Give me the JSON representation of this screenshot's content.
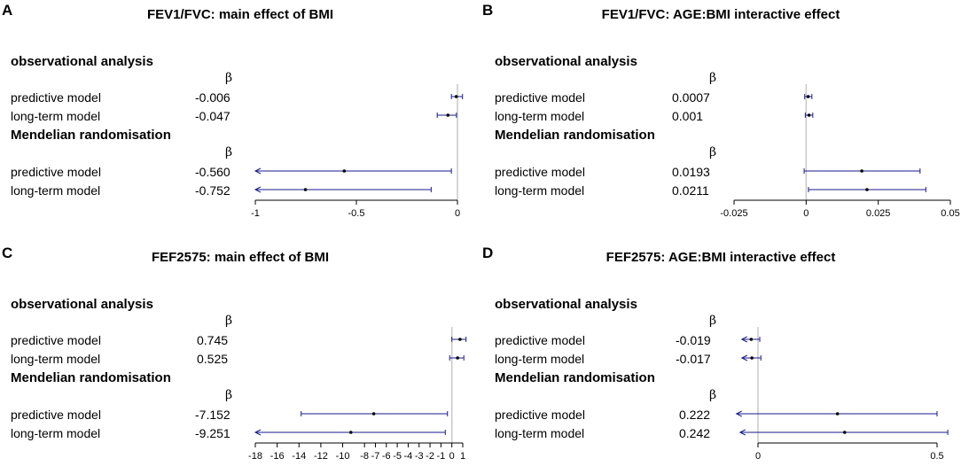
{
  "panels": [
    {
      "letter": "A",
      "title": "FEV1/FVC: main effect of BMI",
      "obs_heading": "observational analysis",
      "mr_heading": "Mendelian randomisation",
      "beta_symbol": "β",
      "rows": [
        {
          "label": "predictive model",
          "value": "-0.006"
        },
        {
          "label": "long-term model",
          "value": "-0.047"
        },
        {
          "label": "predictive model",
          "value": "-0.560"
        },
        {
          "label": "long-term model",
          "value": "-0.752"
        }
      ]
    },
    {
      "letter": "B",
      "title": "FEV1/FVC: AGE:BMI interactive effect",
      "obs_heading": "observational analysis",
      "mr_heading": "Mendelian randomisation",
      "beta_symbol": "β",
      "rows": [
        {
          "label": "predictive model",
          "value": "0.0007"
        },
        {
          "label": "long-term model",
          "value": "0.001"
        },
        {
          "label": "predictive model",
          "value": "0.0193"
        },
        {
          "label": "long-term model",
          "value": "0.0211"
        }
      ]
    },
    {
      "letter": "C",
      "title": "FEF2575: main effect of BMI",
      "obs_heading": "observational analysis",
      "mr_heading": "Mendelian randomisation",
      "beta_symbol": "β",
      "rows": [
        {
          "label": "predictive model",
          "value": "0.745"
        },
        {
          "label": "long-term model",
          "value": "0.525"
        },
        {
          "label": "predictive model",
          "value": "-7.152"
        },
        {
          "label": "long-term model",
          "value": "-9.251"
        }
      ]
    },
    {
      "letter": "D",
      "title": "FEF2575: AGE:BMI interactive effect",
      "obs_heading": "observational analysis",
      "mr_heading": "Mendelian randomisation",
      "beta_symbol": "β",
      "rows": [
        {
          "label": "predictive model",
          "value": "-0.019"
        },
        {
          "label": "long-term model",
          "value": "-0.017"
        },
        {
          "label": "predictive model",
          "value": "0.222"
        },
        {
          "label": "long-term model",
          "value": "0.242"
        }
      ]
    }
  ],
  "colors": {
    "ci_line": "#1a1a8c",
    "zero_line": "#c8c8c8",
    "point": "#000000"
  },
  "chart_data": [
    {
      "type": "forest",
      "title": "FEV1/FVC: main effect of BMI",
      "xlim": [
        -1,
        0
      ],
      "ticks": [
        -1,
        -0.5,
        0
      ],
      "tick_labels": [
        "-1",
        "-0.5",
        "0"
      ],
      "ref_line": 0,
      "points": [
        {
          "estimate": -0.006,
          "lower": -0.03,
          "upper": 0.025
        },
        {
          "estimate": -0.047,
          "lower": -0.1,
          "upper": -0.005
        },
        {
          "estimate": -0.56,
          "lower": -1.0,
          "upper": -0.03
        },
        {
          "estimate": -0.752,
          "lower": -1.0,
          "upper": -0.13
        }
      ]
    },
    {
      "type": "forest",
      "title": "FEV1/FVC: AGE:BMI interactive effect",
      "xlim": [
        -0.025,
        0.05
      ],
      "ticks": [
        -0.025,
        0,
        0.025,
        0.05
      ],
      "tick_labels": [
        "-0.025",
        "0",
        "0.025",
        "0.05"
      ],
      "ref_line": 0,
      "points": [
        {
          "estimate": 0.0007,
          "lower": -0.0005,
          "upper": 0.002
        },
        {
          "estimate": 0.001,
          "lower": -0.0003,
          "upper": 0.0023
        },
        {
          "estimate": 0.0193,
          "lower": -0.0007,
          "upper": 0.0395
        },
        {
          "estimate": 0.0211,
          "lower": 0.0008,
          "upper": 0.0415
        }
      ]
    },
    {
      "type": "forest",
      "title": "FEF2575: main effect of BMI",
      "xlim": [
        -18,
        1
      ],
      "ticks": [
        -18,
        -16,
        -14,
        -12,
        -10,
        -8,
        -7,
        -6,
        -5,
        -4,
        -3,
        -2,
        -1,
        0,
        1
      ],
      "tick_labels": [
        "-18",
        "-16",
        "-14",
        "-12",
        "-10",
        "-8",
        "-7",
        "-6",
        "-5",
        "-4",
        "-3",
        "-2",
        "-1",
        "0",
        "1"
      ],
      "ref_line": 0,
      "points": [
        {
          "estimate": 0.745,
          "lower": 0.0,
          "upper": 1.3
        },
        {
          "estimate": 0.525,
          "lower": -0.2,
          "upper": 1.1
        },
        {
          "estimate": -7.152,
          "lower": -13.8,
          "upper": -0.4
        },
        {
          "estimate": -9.251,
          "lower": -18.0,
          "upper": -0.6
        }
      ]
    },
    {
      "type": "forest",
      "title": "FEF2575: AGE:BMI interactive effect",
      "xlim": [
        0,
        0.5
      ],
      "ticks": [
        0,
        0.5
      ],
      "tick_labels": [
        "0",
        "0.5"
      ],
      "ref_line": 0,
      "points": [
        {
          "estimate": -0.019,
          "lower": -0.045,
          "upper": 0.005
        },
        {
          "estimate": -0.017,
          "lower": -0.045,
          "upper": 0.008
        },
        {
          "estimate": 0.222,
          "lower": -0.06,
          "upper": 0.5
        },
        {
          "estimate": 0.242,
          "lower": -0.05,
          "upper": 0.53
        }
      ]
    }
  ]
}
